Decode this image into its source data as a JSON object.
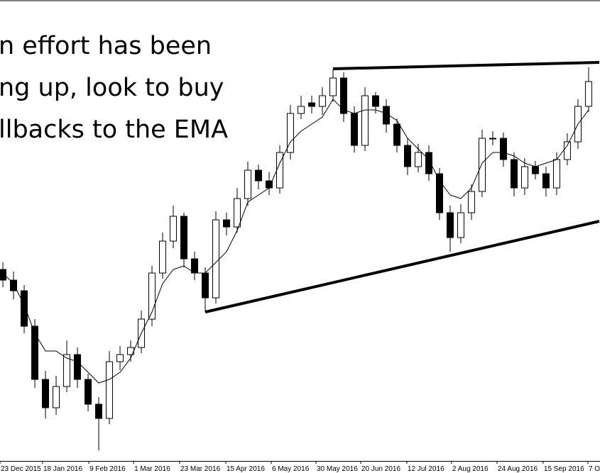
{
  "chart_data": {
    "type": "candlestick",
    "annotation": [
      "n effort has been",
      "ng up, look to buy",
      "llbacks to the EMA"
    ],
    "open": [
      270,
      255,
      240,
      190,
      115,
      75,
      105,
      150,
      115,
      80,
      60,
      140,
      150,
      160,
      200,
      265,
      310,
      345,
      285,
      265,
      230,
      340,
      330,
      370,
      410,
      395,
      385,
      435,
      490,
      505,
      500,
      515,
      540,
      490,
      445,
      515,
      500,
      475,
      445,
      415,
      435,
      405,
      350,
      315,
      350,
      380,
      455,
      455,
      425,
      385,
      415,
      405,
      385,
      425,
      450,
      500
    ],
    "high": [
      280,
      267,
      248,
      200,
      127,
      120,
      170,
      160,
      123,
      90,
      155,
      162,
      170,
      212,
      275,
      322,
      360,
      350,
      295,
      273,
      352,
      350,
      385,
      422,
      418,
      407,
      445,
      502,
      515,
      515,
      527,
      552,
      548,
      500,
      527,
      520,
      510,
      483,
      455,
      447,
      445,
      413,
      360,
      362,
      390,
      467,
      465,
      463,
      435,
      427,
      423,
      415,
      435,
      462,
      510,
      555
    ],
    "low": [
      245,
      228,
      180,
      103,
      60,
      65,
      97,
      103,
      70,
      15,
      52,
      128,
      140,
      152,
      190,
      257,
      300,
      273,
      255,
      210,
      222,
      318,
      322,
      360,
      383,
      375,
      377,
      425,
      482,
      490,
      488,
      507,
      478,
      435,
      437,
      490,
      463,
      435,
      403,
      407,
      395,
      340,
      295,
      307,
      340,
      372,
      445,
      415,
      373,
      375,
      397,
      373,
      375,
      417,
      440,
      492
    ],
    "close": [
      255,
      240,
      190,
      115,
      75,
      105,
      150,
      115,
      80,
      60,
      140,
      150,
      160,
      200,
      265,
      310,
      345,
      285,
      265,
      230,
      340,
      330,
      370,
      410,
      395,
      385,
      435,
      490,
      500,
      500,
      515,
      540,
      490,
      445,
      515,
      500,
      475,
      445,
      415,
      435,
      405,
      350,
      315,
      350,
      380,
      455,
      455,
      425,
      385,
      415,
      405,
      385,
      425,
      450,
      500,
      535
    ],
    "ema": [
      265,
      250,
      220,
      180,
      155,
      155,
      145,
      140,
      125,
      110,
      115,
      125,
      145,
      180,
      210,
      250,
      270,
      275,
      265,
      265,
      280,
      295,
      325,
      365,
      375,
      385,
      420,
      450,
      465,
      475,
      485,
      510,
      495,
      490,
      495,
      495,
      490,
      480,
      455,
      440,
      425,
      395,
      375,
      370,
      385,
      420,
      435,
      435,
      430,
      420,
      415,
      420,
      425,
      445,
      475,
      495
    ],
    "trendlines": [
      {
        "x": [
          31,
          56
        ],
        "values": [
          553,
          562
        ]
      },
      {
        "x": [
          19,
          56
        ],
        "values": [
          210,
          338
        ]
      }
    ],
    "xlim": [
      -0.27,
      56.07
    ],
    "ylim": [
      0,
      650
    ],
    "xticks": [
      {
        "value": -0.27,
        "label": "23 Dec 2015"
      },
      {
        "value": 3.73,
        "label": "18 Jan 2016"
      },
      {
        "value": 8.07,
        "label": "9 Feb 2016"
      },
      {
        "value": 12.27,
        "label": "1 Mar 2016"
      },
      {
        "value": 16.6,
        "label": "23 Mar 2016"
      },
      {
        "value": 20.93,
        "label": "15 Apr 2016"
      },
      {
        "value": 25.2,
        "label": "6 May 2016"
      },
      {
        "value": 29.4,
        "label": "30 May 2016"
      },
      {
        "value": 33.6,
        "label": "20 Jun 2016"
      },
      {
        "value": 37.93,
        "label": "12 Jul 2016"
      },
      {
        "value": 42.13,
        "label": "2 Aug 2016"
      },
      {
        "value": 46.4,
        "label": "24 Aug 2016"
      },
      {
        "value": 50.73,
        "label": "15 Sep 2016"
      },
      {
        "value": 54.93,
        "label": "7 O"
      }
    ],
    "up_color": "#ffffff",
    "down_color": "#000000",
    "line_color": "#000000"
  }
}
